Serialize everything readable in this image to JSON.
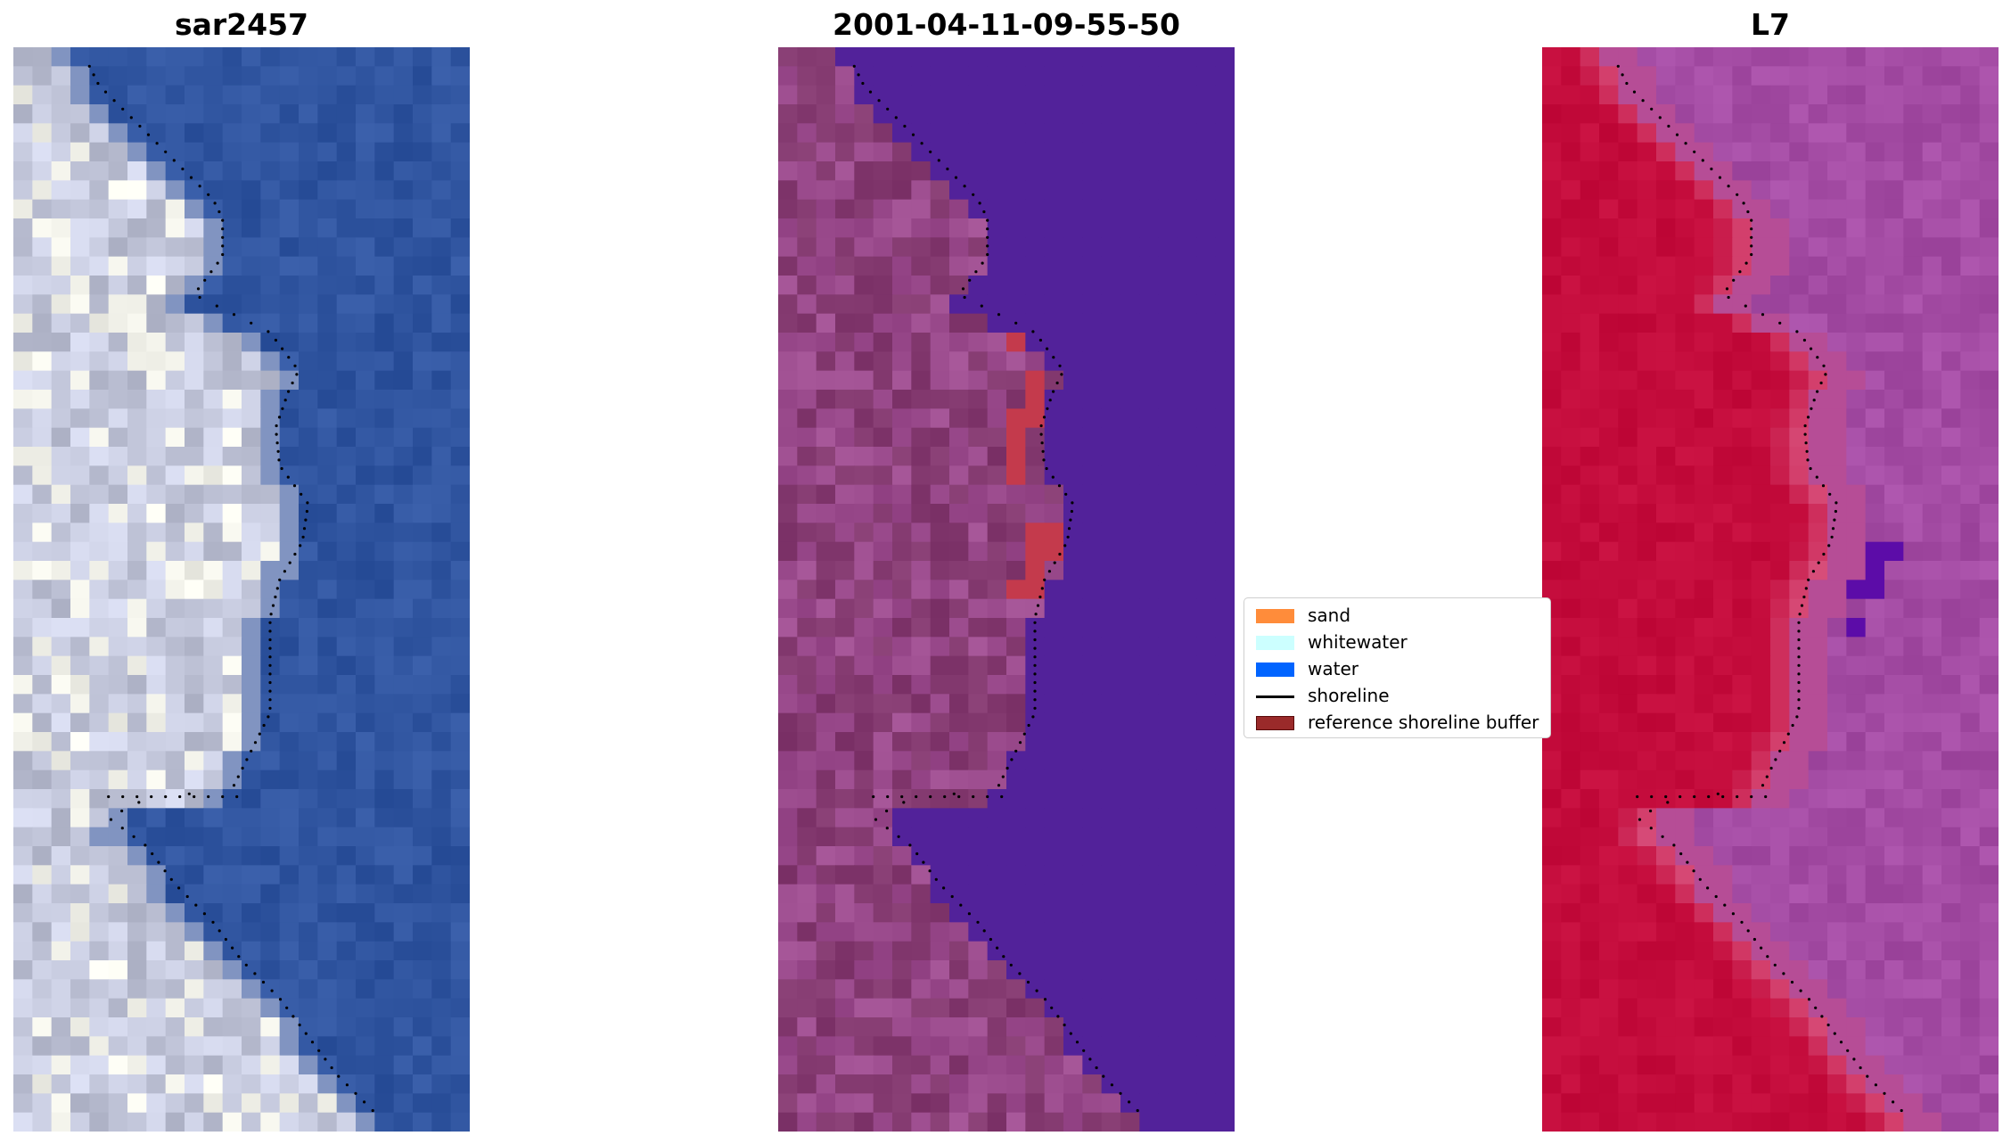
{
  "panels": [
    {
      "title": "sar2457",
      "style": "rgb",
      "colors": {
        "land": "#c4c8dc",
        "water": "#3055a0",
        "bright": "#f2f2ea",
        "ocean_var": "#2f5aa4"
      }
    },
    {
      "title": "2001-04-11-09-55-50",
      "style": "classified",
      "colors": {
        "land": "#9c4c8e",
        "land_dark": "#83396f",
        "water": "#52229a",
        "buffer": "#c43a4c"
      }
    },
    {
      "title": "L7",
      "style": "index",
      "colors": {
        "land": "#c40c3c",
        "transition": "#d8507c",
        "water": "#a44ca4",
        "deep": "#5c0ca8"
      }
    }
  ],
  "legend": {
    "items": [
      {
        "label": "sand",
        "color": "#ff8c3a",
        "kind": "patch"
      },
      {
        "label": "whitewater",
        "color": "#ccffff",
        "kind": "patch"
      },
      {
        "label": "water",
        "color": "#0064ff",
        "kind": "patch"
      },
      {
        "label": "shoreline",
        "color": "#000000",
        "kind": "line"
      },
      {
        "label": "reference shoreline buffer",
        "color": "#9a2a2a",
        "kind": "patch"
      }
    ]
  }
}
